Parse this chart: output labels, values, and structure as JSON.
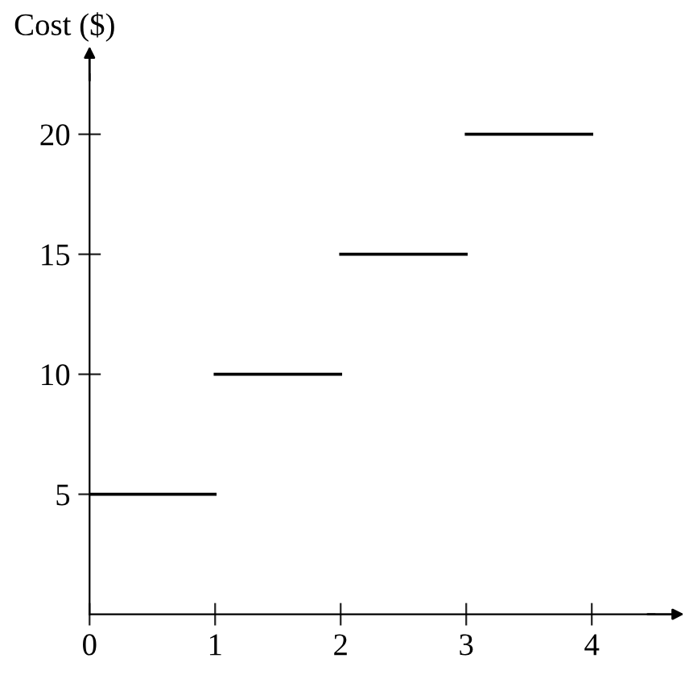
{
  "chart_data": {
    "type": "line",
    "ylabel": "Cost ($)",
    "series": [
      {
        "x": [
          0,
          1
        ],
        "values": [
          5,
          5
        ],
        "color": "#000000"
      },
      {
        "x": [
          1,
          2
        ],
        "values": [
          10,
          10
        ],
        "color": "#000000"
      },
      {
        "x": [
          2,
          3
        ],
        "values": [
          15,
          15
        ],
        "color": "#000000"
      },
      {
        "x": [
          3,
          4
        ],
        "values": [
          20,
          20
        ],
        "color": "#000000"
      }
    ],
    "xlim": [
      0,
      4.5
    ],
    "ylim": [
      0,
      22.5
    ],
    "xticks": [
      0,
      1,
      2,
      3,
      4
    ],
    "yticks": [
      5,
      10,
      15,
      20
    ],
    "grid": false,
    "legend": false,
    "marker": "none",
    "line_style": "solid"
  }
}
